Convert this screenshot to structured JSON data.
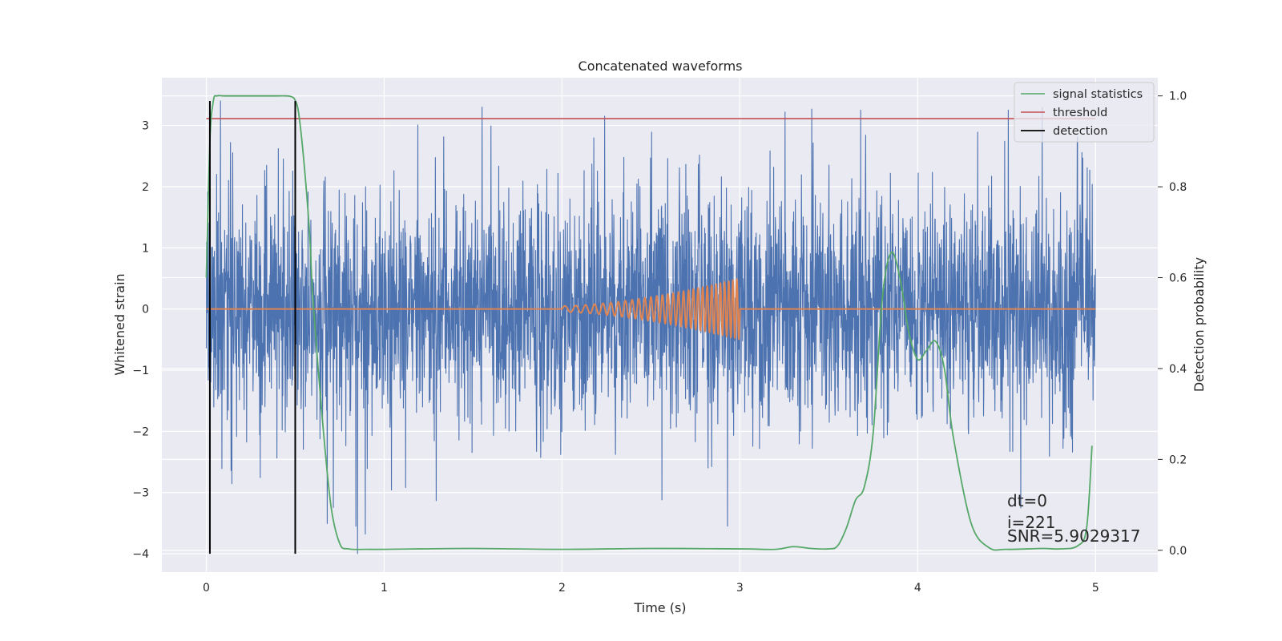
{
  "chart_data": {
    "type": "line",
    "title": "Concatenated waveforms",
    "xlabel": "Time (s)",
    "ylabel": "Whitened strain",
    "y2label": "Detection probability",
    "xlim": [
      -0.25,
      5.35
    ],
    "ylim": [
      -4.3,
      3.78
    ],
    "y2lim": [
      -0.048,
      1.04
    ],
    "xticks": [
      0,
      1,
      2,
      3,
      4,
      5
    ],
    "yticks": [
      -4,
      -3,
      -2,
      -1,
      0,
      1,
      2,
      3
    ],
    "y2ticks": [
      0.0,
      0.2,
      0.4,
      0.6,
      0.8,
      1.0
    ],
    "ytick_labels": [
      "−4",
      "−3",
      "−2",
      "−1",
      "0",
      "1",
      "2",
      "3"
    ],
    "y2tick_labels": [
      "0.0",
      "0.2",
      "0.4",
      "0.6",
      "0.8",
      "1.0"
    ],
    "grid": true,
    "legend_position": "top-right",
    "colors": {
      "strain": "#4c72b0",
      "template": "#dd8452",
      "signal": "#55a868",
      "threshold": "#c44e52",
      "detection": "#000000",
      "background": "#eaeaf2",
      "grid": "#ffffff"
    },
    "series": [
      {
        "key": "strain",
        "x_range": [
          0,
          5
        ],
        "amplitude_std": 1.0,
        "notable_peaks": [
          {
            "x": 0.08,
            "y": 3.4
          },
          {
            "x": 0.85,
            "y": -4.0
          },
          {
            "x": 1.55,
            "y": 3.3
          },
          {
            "x": 2.24,
            "y": 3.15
          },
          {
            "x": 2.93,
            "y": -3.55
          },
          {
            "x": 3.68,
            "y": 3.25
          },
          {
            "x": 4.51,
            "y": 3.25
          },
          {
            "x": 4.58,
            "y": -3.25
          }
        ]
      },
      {
        "key": "template",
        "chirp_start": 2.0,
        "chirp_end": 3.0,
        "amplitude_start": 0.05,
        "amplitude_end": 0.5,
        "cycles": 30
      },
      {
        "name": "signal statistics",
        "axis": "right",
        "x": [
          0.0,
          0.02,
          0.04,
          0.06,
          0.1,
          0.2,
          0.3,
          0.4,
          0.45,
          0.48,
          0.5,
          0.52,
          0.55,
          0.58,
          0.6,
          0.65,
          0.7,
          0.75,
          0.8,
          0.9,
          1.0,
          1.2,
          1.5,
          2.0,
          2.5,
          3.0,
          3.2,
          3.3,
          3.4,
          3.5,
          3.55,
          3.6,
          3.65,
          3.7,
          3.75,
          3.8,
          3.85,
          3.9,
          3.95,
          4.0,
          4.05,
          4.1,
          4.15,
          4.2,
          4.3,
          4.4,
          4.5,
          4.7,
          4.8,
          4.9,
          4.95,
          4.98
        ],
        "y": [
          0.6,
          0.9,
          0.99,
          1.0,
          1.0,
          1.0,
          1.0,
          1.0,
          1.0,
          0.998,
          0.99,
          0.96,
          0.85,
          0.7,
          0.55,
          0.3,
          0.1,
          0.015,
          0.003,
          0.002,
          0.002,
          0.003,
          0.004,
          0.002,
          0.004,
          0.003,
          0.002,
          0.008,
          0.004,
          0.003,
          0.01,
          0.05,
          0.11,
          0.14,
          0.26,
          0.55,
          0.655,
          0.6,
          0.48,
          0.42,
          0.44,
          0.46,
          0.4,
          0.25,
          0.06,
          0.006,
          0.002,
          0.004,
          0.003,
          0.01,
          0.05,
          0.23
        ]
      },
      {
        "name": "threshold",
        "axis": "right",
        "x": [
          0,
          5
        ],
        "y": [
          0.95,
          0.95
        ]
      },
      {
        "name": "detection",
        "axis": "left",
        "events": [
          0.02,
          0.5
        ],
        "y_range": [
          -4,
          3.4
        ]
      }
    ],
    "annotations": [
      "dt=0",
      "i=221",
      "SNR=5.9029317"
    ]
  }
}
